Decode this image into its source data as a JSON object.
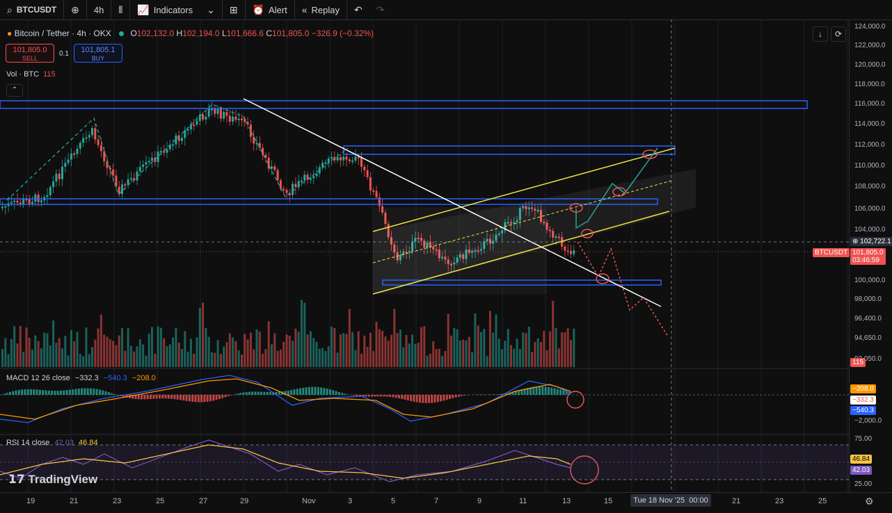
{
  "toolbar": {
    "symbol": "BTCUSDT",
    "interval": "4h",
    "indicators": "Indicators",
    "alert": "Alert",
    "replay": "Replay"
  },
  "legend": {
    "name": "Bitcoin / Tether · 4h · OKX",
    "o_label": "O",
    "o": "102,132.0",
    "h_label": "H",
    "h": "102,194.0",
    "l_label": "L",
    "l": "101,666.6",
    "c_label": "C",
    "c": "101,805.0",
    "change": "−326.9 (−0.32%)"
  },
  "trade": {
    "sell_price": "101,805.0",
    "sell_label": "SELL",
    "spread": "0.1",
    "buy_price": "101,805.1",
    "buy_label": "BUY"
  },
  "volume": {
    "label": "Vol · BTC",
    "value": "115"
  },
  "macd": {
    "label": "MACD 12 26 close",
    "v1": "−332.3",
    "v2": "−540.3",
    "v3": "−208.0"
  },
  "rsi": {
    "label": "RSI 14 close",
    "v1": "42.03",
    "v2": "46.84"
  },
  "price_axis": {
    "labels": [
      "124,000.0",
      "122,000.0",
      "120,000.0",
      "118,000.0",
      "116,000.0",
      "114,000.0",
      "112,000.0",
      "110,000.0",
      "108,000.0",
      "106,000.0",
      "104,000.0",
      "100,000.0",
      "98,000.0",
      "96,400.0",
      "94,650.0",
      "93,050.0"
    ],
    "crosshair_price": "102,722.1",
    "symbol_tag": "BTCUSDT",
    "last_price": "101,805.0",
    "countdown": "03:46:59",
    "vol_tag": "115",
    "macd_labels": [
      "−2,000.0"
    ],
    "macd_tags": [
      "−208.0",
      "−332.3",
      "−540.3"
    ],
    "rsi_labels": [
      "75.00",
      "25.00"
    ],
    "rsi_tags": [
      "46.84",
      "42.03"
    ]
  },
  "time_axis": {
    "labels": [
      "19",
      "21",
      "23",
      "25",
      "27",
      "29",
      "Nov",
      "3",
      "5",
      "7",
      "9",
      "11",
      "13",
      "15",
      "21",
      "23",
      "25"
    ],
    "cursor": "Tue 18 Nov '25",
    "cursor_time": "00:00"
  },
  "watermark": "TradingView",
  "colors": {
    "up": "#26a69a",
    "down": "#ef5350",
    "zone": "#2962ff",
    "channel": "#f5e642",
    "trend": "#ffffff"
  }
}
